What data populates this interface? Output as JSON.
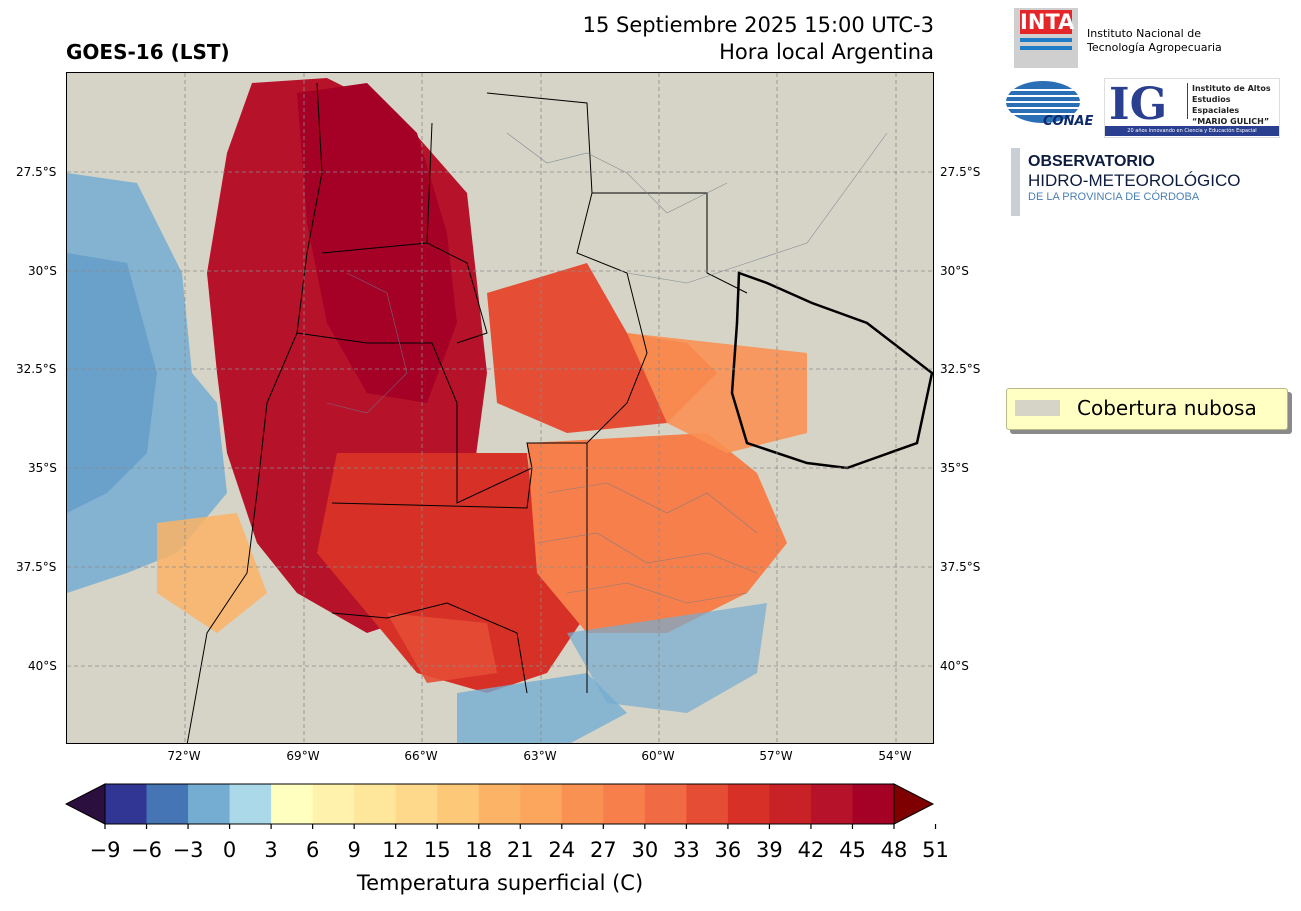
{
  "header": {
    "product": "GOES-16 (LST)",
    "datetime": "15 Septiembre 2025 15:00 UTC-3",
    "local_note": "Hora local Argentina"
  },
  "logos": {
    "inta_logo": "INTA",
    "inta_name_line1": "Instituto Nacional de",
    "inta_name_line2": "Tecnología Agropecuaria",
    "conae": "CONAE",
    "ig_logo": "IG",
    "ig_line1": "Instituto de Altos",
    "ig_line2": "Estudios Espaciales",
    "ig_line3": "“MARIO GULICH”",
    "ig_tagline": "20 años innovando en Ciencia y Educación Espacial",
    "obs_line1": "OBSERVATORIO",
    "obs_line2": "HIDRO-METEOROLÓGICO",
    "obs_line3": "DE LA PROVINCIA DE CÓRDOBA"
  },
  "map": {
    "lat_labels": [
      "27.5°S",
      "30°S",
      "32.5°S",
      "35°S",
      "37.5°S",
      "40°S"
    ],
    "lon_labels": [
      "72°W",
      "69°W",
      "66°W",
      "63°W",
      "60°W",
      "57°W",
      "54°W"
    ],
    "cloud_color": "#d6d4c6",
    "gridlines": "dashed"
  },
  "legend": {
    "label": "Cobertura nubosa",
    "swatch_color": "#d6d4c6"
  },
  "colorbar": {
    "title": "Temperatura superficial (C)",
    "ticks": [
      "−9",
      "−6",
      "−3",
      "0",
      "3",
      "6",
      "9",
      "12",
      "15",
      "18",
      "21",
      "24",
      "27",
      "30",
      "33",
      "36",
      "39",
      "42",
      "45",
      "48",
      "51"
    ],
    "colors": [
      "#313695",
      "#4575b4",
      "#74add1",
      "#abd9e9",
      "#ffffbf",
      "#fff2ac",
      "#fee79b",
      "#fed98b",
      "#fdc878",
      "#fdb366",
      "#fca55d",
      "#f99153",
      "#f67f4b",
      "#f06a43",
      "#e54e35",
      "#d73027",
      "#c82227",
      "#b6132a",
      "#a50026"
    ],
    "under_color": "#2b0f3f",
    "over_color": "#7f0000"
  }
}
